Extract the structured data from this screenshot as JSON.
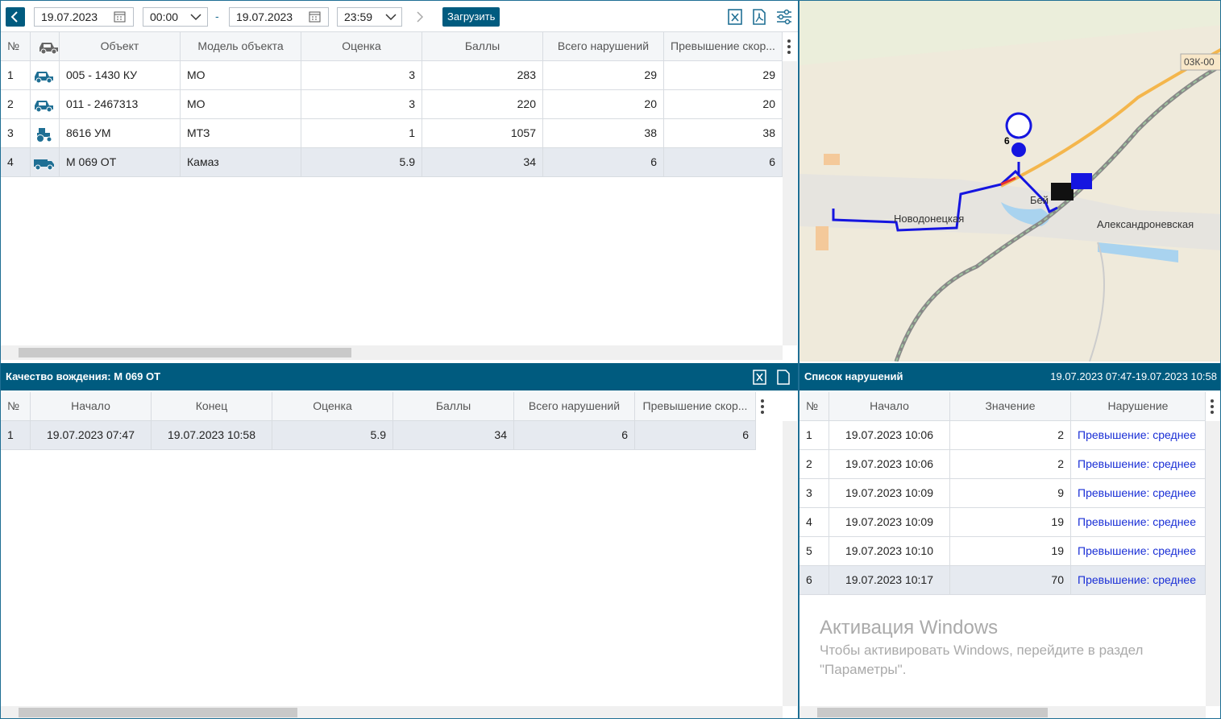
{
  "toolbar": {
    "date_from": "19.07.2023",
    "time_from": "00:00",
    "separator": "-",
    "date_to": "19.07.2023",
    "time_to": "23:59",
    "load_button": "Загрузить"
  },
  "objects_table": {
    "columns": [
      "№",
      "Объект",
      "Модель объекта",
      "Оценка",
      "Баллы",
      "Всего нарушений",
      "Превышение скор..."
    ],
    "selected_index": 3,
    "rows": [
      {
        "icon": "car",
        "cells": [
          1,
          "005 - 1430 КУ",
          "МО",
          3,
          283,
          29,
          29
        ]
      },
      {
        "icon": "car",
        "cells": [
          2,
          "011 - 2467313",
          "МО",
          3,
          220,
          20,
          20
        ]
      },
      {
        "icon": "tractor",
        "cells": [
          3,
          "8616 УМ",
          "МТЗ",
          1,
          1057,
          38,
          38
        ]
      },
      {
        "icon": "truck",
        "cells": [
          4,
          "М 069 ОТ",
          "Камаз",
          5.9,
          34,
          6,
          6
        ]
      }
    ]
  },
  "map": {
    "road_label": "03К-00",
    "marker_label": "6",
    "labels": [
      "Новодонецкая",
      "Бей",
      "Александроневская"
    ]
  },
  "detail": {
    "title": "Качество вождения: М 069 ОТ",
    "table": {
      "columns": [
        "№",
        "Начало",
        "Конец",
        "Оценка",
        "Баллы",
        "Всего нарушений",
        "Превышение скор..."
      ],
      "selected_index": 0,
      "rows": [
        {
          "cells": [
            1,
            "19.07.2023 07:47",
            "19.07.2023 10:58",
            5.9,
            34,
            6,
            6
          ]
        }
      ]
    }
  },
  "violations": {
    "title": "Список нарушений",
    "range": "19.07.2023 07:47-19.07.2023 10:58",
    "table": {
      "columns": [
        "№",
        "Начало",
        "Значение",
        "Нарушение"
      ],
      "selected_index": 5,
      "rows": [
        {
          "cells": [
            1,
            "19.07.2023 10:06",
            2,
            "Превышение: среднее"
          ]
        },
        {
          "cells": [
            2,
            "19.07.2023 10:06",
            2,
            "Превышение: среднее"
          ]
        },
        {
          "cells": [
            3,
            "19.07.2023 10:09",
            9,
            "Превышение: среднее"
          ]
        },
        {
          "cells": [
            4,
            "19.07.2023 10:09",
            19,
            "Превышение: среднее"
          ]
        },
        {
          "cells": [
            5,
            "19.07.2023 10:10",
            19,
            "Превышение: среднее"
          ]
        },
        {
          "cells": [
            6,
            "19.07.2023 10:17",
            70,
            "Превышение: среднее"
          ]
        }
      ]
    }
  },
  "watermark": {
    "title": "Активация Windows",
    "lines": [
      "Чтобы активировать Windows, перейдите в раздел",
      "\"Параметры\"."
    ]
  }
}
